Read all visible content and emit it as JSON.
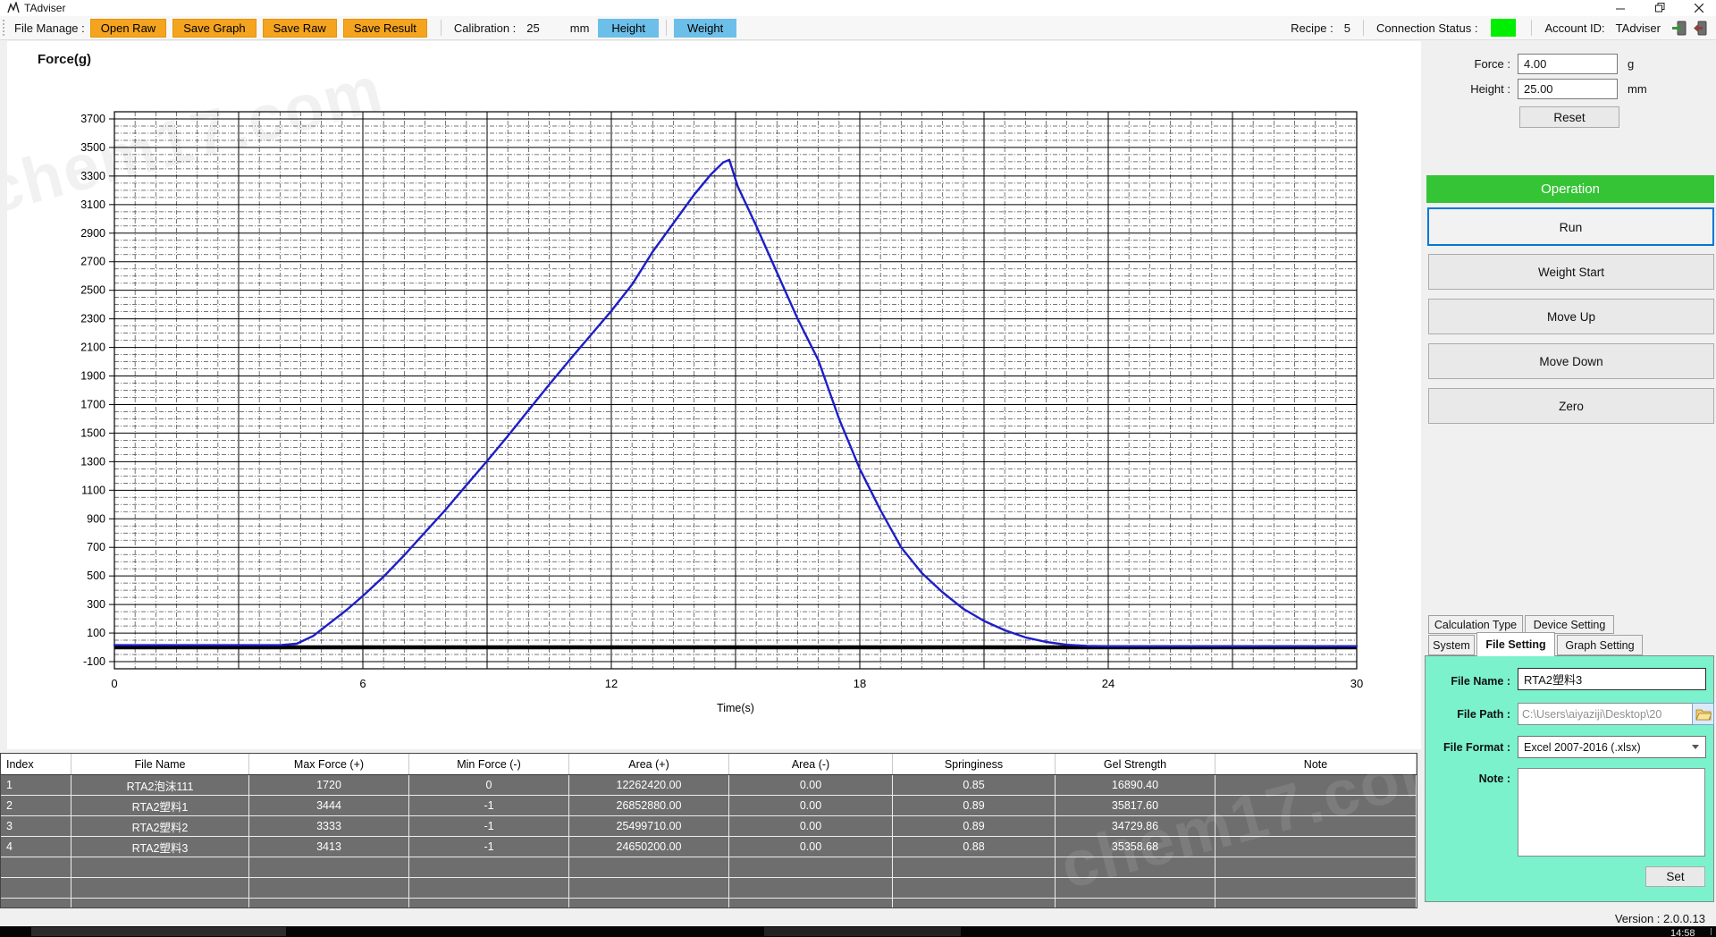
{
  "window": {
    "title": "TAdviser",
    "controls": {
      "minimize": "minimize",
      "maximize": "restore",
      "close": "close"
    }
  },
  "toolbar": {
    "file_manage_label": "File Manage :",
    "buttons": [
      {
        "label": "Open Raw"
      },
      {
        "label": "Save Graph"
      },
      {
        "label": "Save Raw"
      },
      {
        "label": "Save Result"
      }
    ],
    "calibration_label": "Calibration :",
    "calibration_value": "25",
    "calibration_unit": "mm",
    "mode_buttons": [
      {
        "label": "Height"
      },
      {
        "label": "Weight"
      }
    ],
    "recipe_label": "Recipe :",
    "recipe_value": "5",
    "connection_label": "Connection Status :",
    "connection_color": "#00EE00",
    "account_label": "Account ID:",
    "account_value": "TAdviser"
  },
  "chart_data": {
    "type": "line",
    "title": "",
    "ylabel": "Force(g)",
    "xlabel": "Time(s)",
    "xlim": [
      0,
      30
    ],
    "ylim": [
      -150,
      3750
    ],
    "x_major_ticks": [
      0,
      6,
      12,
      18,
      24,
      30
    ],
    "x_solid_grid_step": 3,
    "x_minor_grid_step": 0.5,
    "y_label_min": -100,
    "y_label_max": 3700,
    "y_solid_grid_step": 200,
    "y_minor_grid_step": 50,
    "zero_line_at": 0,
    "line_color": "#1E1EC8",
    "grid": true,
    "series": [
      {
        "name": "force",
        "points": [
          [
            0,
            15
          ],
          [
            2,
            15
          ],
          [
            4,
            15
          ],
          [
            4.4,
            25
          ],
          [
            4.8,
            80
          ],
          [
            5.2,
            170
          ],
          [
            5.6,
            260
          ],
          [
            6,
            360
          ],
          [
            6.5,
            495
          ],
          [
            7,
            645
          ],
          [
            7.5,
            805
          ],
          [
            8,
            965
          ],
          [
            8.5,
            1135
          ],
          [
            9,
            1305
          ],
          [
            9.5,
            1480
          ],
          [
            10,
            1660
          ],
          [
            10.5,
            1840
          ],
          [
            11,
            2015
          ],
          [
            11.5,
            2185
          ],
          [
            12,
            2355
          ],
          [
            12.5,
            2540
          ],
          [
            13,
            2770
          ],
          [
            13.5,
            2970
          ],
          [
            14,
            3170
          ],
          [
            14.4,
            3310
          ],
          [
            14.7,
            3395
          ],
          [
            14.85,
            3413
          ],
          [
            15.05,
            3230
          ],
          [
            15.5,
            2950
          ],
          [
            16,
            2625
          ],
          [
            16.5,
            2300
          ],
          [
            17,
            2010
          ],
          [
            17.5,
            1600
          ],
          [
            18,
            1250
          ],
          [
            18.5,
            960
          ],
          [
            19,
            700
          ],
          [
            19.5,
            520
          ],
          [
            20,
            385
          ],
          [
            20.5,
            270
          ],
          [
            21,
            185
          ],
          [
            21.5,
            120
          ],
          [
            22,
            70
          ],
          [
            22.5,
            38
          ],
          [
            23,
            18
          ],
          [
            23.5,
            10
          ],
          [
            24,
            8
          ],
          [
            26,
            8
          ],
          [
            28,
            8
          ],
          [
            30,
            8
          ]
        ]
      }
    ]
  },
  "side_panel": {
    "force_label": "Force :",
    "force_value": "4.00",
    "force_unit": "g",
    "height_label": "Height :",
    "height_value": "25.00",
    "height_unit": "mm",
    "reset_label": "Reset",
    "operation_label": "Operation",
    "op_buttons": [
      "Run",
      "Weight Start",
      "Move Up",
      "Move Down",
      "Zero"
    ],
    "tabs_row1": [
      "Calculation Type",
      "Device Setting"
    ],
    "tabs_row2": [
      "System",
      "File Setting",
      "Graph Setting"
    ],
    "active_tab": "File Setting",
    "file_name_label": "File Name :",
    "file_name_value": "RTA2塑料3",
    "file_path_label": "File Path :",
    "file_path_value": "C:\\Users\\aiyaziji\\Desktop\\20",
    "file_format_label": "File Format :",
    "file_format_value": "Excel 2007-2016 (.xlsx)",
    "note_label": "Note :",
    "note_value": "",
    "set_label": "Set"
  },
  "table": {
    "headers": [
      "Index",
      "File Name",
      "Max Force (+)",
      "Min Force (-)",
      "Area (+)",
      "Area (-)",
      "Springiness",
      "Gel Strength",
      "Note"
    ],
    "rows": [
      [
        "1",
        "RTA2泡沫111",
        "1720",
        "0",
        "12262420.00",
        "0.00",
        "0.85",
        "16890.40",
        ""
      ],
      [
        "2",
        "RTA2塑料1",
        "3444",
        "-1",
        "26852880.00",
        "0.00",
        "0.89",
        "35817.60",
        ""
      ],
      [
        "3",
        "RTA2塑料2",
        "3333",
        "-1",
        "25499710.00",
        "0.00",
        "0.89",
        "34729.86",
        ""
      ],
      [
        "4",
        "RTA2塑料3",
        "3413",
        "-1",
        "24650200.00",
        "0.00",
        "0.88",
        "35358.68",
        ""
      ]
    ],
    "empty_row_count": 3
  },
  "status": {
    "version": "Version : 2.0.0.13"
  },
  "taskbar": {
    "clock": "14:58"
  },
  "watermark": "chem17.com"
}
